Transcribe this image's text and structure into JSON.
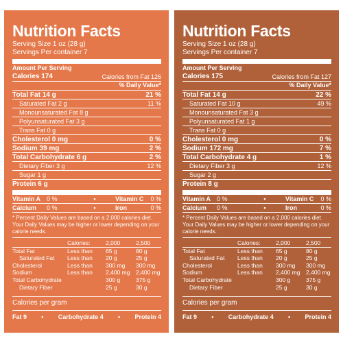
{
  "panels": [
    {
      "bg": "#e4784a",
      "title": "Nutrition Facts",
      "serving_size": "Serving Size 1 oz (28 g)",
      "servings_per": "Servings Per container 7",
      "amount_per": "Amount Per Serving",
      "calories": "Calories 174",
      "calories_fat": "Calories from Fat 126",
      "daily_value": "% Daily Value*",
      "total_fat": {
        "label": "Total Fat 14 g",
        "dv": "21 %"
      },
      "saturated_fat": {
        "label": "Saturated Fat 2 g",
        "dv": "11 %"
      },
      "mono_fat": {
        "label": "Monounsaturated Fat 8 g"
      },
      "poly_fat": {
        "label": "Polyunsaturated Fat 3 g"
      },
      "trans_fat": {
        "label": "Trans Fat  0 g"
      },
      "cholesterol": {
        "label": "Cholesterol 0 mg",
        "dv": "0 %"
      },
      "sodium": {
        "label": "Sodium 39 mg",
        "dv": "2 %"
      },
      "carb": {
        "label": "Total Carbohydrate 6 g",
        "dv": "2 %"
      },
      "fiber": {
        "label": "Dietary Fiber 3 g",
        "dv": "12 %"
      },
      "sugar": {
        "label": "Sugar 1 g"
      },
      "protein": {
        "label": "Protein 6 g"
      },
      "vit_a": {
        "label": "Vitamin A",
        "dv": "0 %"
      },
      "vit_c": {
        "label": "Vitamin C",
        "dv": "0 %"
      },
      "calcium": {
        "label": "Calcium",
        "dv": "0 %"
      },
      "iron": {
        "label": "Iron",
        "dv": "0 %"
      },
      "bullet": "•",
      "footnote": "* Percent Daily Values are based on a 2,000 calories diet. Your Daily Values may be higher or lower depending on your calorie needs.",
      "ref_header": {
        "name": "",
        "cond": "Calories:",
        "v1": "2,000",
        "v2": "2,500"
      },
      "ref_rows": [
        {
          "name": "Total Fat",
          "cond": "Less than",
          "v1": "65 g",
          "v2": "80 g"
        },
        {
          "name": "Saturated Fat",
          "cond": "Less than",
          "v1": "20 g",
          "v2": "25 g"
        },
        {
          "name": "Cholesterol",
          "cond": "Less than",
          "v1": "300 mg",
          "v2": "300 mg"
        },
        {
          "name": "Sodium",
          "cond": "Less than",
          "v1": "2,400 mg",
          "v2": "2,400 mg"
        },
        {
          "name": "Total Carbohydrate",
          "cond": "",
          "v1": "300 g",
          "v2": "375 g"
        },
        {
          "name": "Dietary Fiber",
          "cond": "",
          "v1": "25 g",
          "v2": "30 g"
        }
      ],
      "cal_per_gram": "Calories per gram",
      "fat_per": "Fat 9",
      "carb_per": "Carbohydrate 4",
      "protein_per": "Protein 4"
    },
    {
      "bg": "#b0613a",
      "title": "Nutrition Facts",
      "serving_size": "Serving Size 1 oz (28 g)",
      "servings_per": "Servings Per container 7",
      "amount_per": "Amount Per Serving",
      "calories": "Calories 175",
      "calories_fat": "Calories from Fat 127",
      "daily_value": "% Daily Value*",
      "total_fat": {
        "label": "Total Fat 14 g",
        "dv": "22 %"
      },
      "saturated_fat": {
        "label": "Saturated Fat 10 g",
        "dv": "49 %"
      },
      "mono_fat": {
        "label": "Monounsaturated Fat 3 g"
      },
      "poly_fat": {
        "label": "Polyunsaturated Fat 1 g"
      },
      "trans_fat": {
        "label": "Trans Fat  0 g"
      },
      "cholesterol": {
        "label": "Cholesterol 0 mg",
        "dv": "0 %"
      },
      "sodium": {
        "label": "Sodium 172 mg",
        "dv": "7 %"
      },
      "carb": {
        "label": "Total Carbohydrate 4 g",
        "dv": "1 %"
      },
      "fiber": {
        "label": "Dietary Fiber 3 g",
        "dv": "12 %"
      },
      "sugar": {
        "label": "Sugar 2 g"
      },
      "protein": {
        "label": "Protein 8 g"
      },
      "vit_a": {
        "label": "Vitamin A",
        "dv": "0 %"
      },
      "vit_c": {
        "label": "Vitamin C",
        "dv": "0 %"
      },
      "calcium": {
        "label": "Calcium",
        "dv": "0 %"
      },
      "iron": {
        "label": "Iron",
        "dv": "0 %"
      },
      "bullet": "•",
      "footnote": "* Percent Daily Values are based on a 2,000 calories diet. Your Daily Values may be higher or lower depending on your calorie needs.",
      "ref_header": {
        "name": "",
        "cond": "Calories:",
        "v1": "2,000",
        "v2": "2,500"
      },
      "ref_rows": [
        {
          "name": "Total Fat",
          "cond": "Less than",
          "v1": "65 g",
          "v2": "80 g"
        },
        {
          "name": "Saturated Fat",
          "cond": "Less than",
          "v1": "20 g",
          "v2": "25 g"
        },
        {
          "name": "Cholesterol",
          "cond": "Less than",
          "v1": "300 mg",
          "v2": "300 mg"
        },
        {
          "name": "Sodium",
          "cond": "Less than",
          "v1": "2,400 mg",
          "v2": "2,400 mg"
        },
        {
          "name": "Total Carbohydrate",
          "cond": "",
          "v1": "300 g",
          "v2": "375 g"
        },
        {
          "name": "Dietary Fiber",
          "cond": "",
          "v1": "25 g",
          "v2": "30 g"
        }
      ],
      "cal_per_gram": "Calories per gram",
      "fat_per": "Fat 9",
      "carb_per": "Carbohydrate 4",
      "protein_per": "Protein 4"
    }
  ]
}
